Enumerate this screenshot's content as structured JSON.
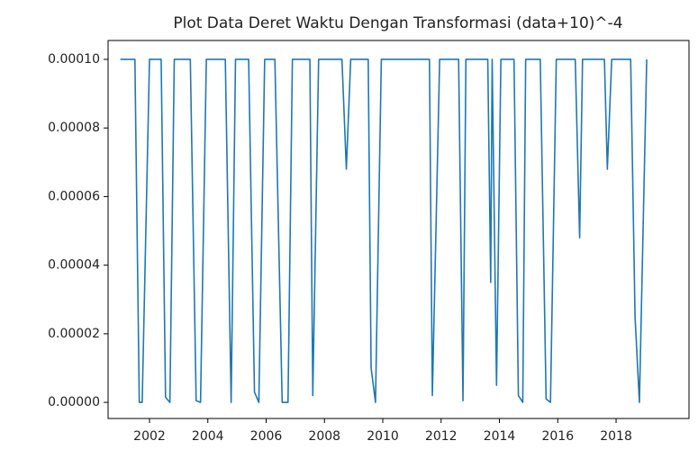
{
  "chart_data": {
    "type": "line",
    "title": "Plot Data Deret Waktu Dengan Transformasi (data+10)^-4",
    "xlim": [
      2000.58,
      2020.5
    ],
    "xticks": [
      2002,
      2004,
      2006,
      2008,
      2010,
      2012,
      2014,
      2016,
      2018
    ],
    "ylim": [
      -4.7e-06,
      0.0001055
    ],
    "yticks": [
      {
        "value": 0,
        "label": "0.00000"
      },
      {
        "value": 2e-05,
        "label": "0.00002"
      },
      {
        "value": 4e-05,
        "label": "0.00004"
      },
      {
        "value": 6e-05,
        "label": "0.00006"
      },
      {
        "value": 8e-05,
        "label": "0.00008"
      },
      {
        "value": 0.0001,
        "label": "0.00010"
      }
    ],
    "grid": false,
    "series": [
      {
        "color": "#1f77b4",
        "x": [
          2001.0,
          2001.5,
          2001.65,
          2001.75,
          2002.0,
          2002.4,
          2002.55,
          2002.7,
          2002.85,
          2003.4,
          2003.6,
          2003.75,
          2003.95,
          2004.6,
          2004.8,
          2004.95,
          2005.4,
          2005.6,
          2005.75,
          2005.95,
          2006.3,
          2006.55,
          2006.75,
          2006.9,
          2007.5,
          2007.6,
          2007.8,
          2008.6,
          2008.75,
          2008.9,
          2009.5,
          2009.6,
          2009.75,
          2009.95,
          2011.6,
          2011.7,
          2011.95,
          2012.6,
          2012.75,
          2012.85,
          2013.6,
          2013.7,
          2013.75,
          2013.9,
          2014.05,
          2014.5,
          2014.65,
          2014.8,
          2014.9,
          2015.4,
          2015.6,
          2015.75,
          2015.95,
          2016.6,
          2016.75,
          2016.85,
          2017.6,
          2017.7,
          2017.85,
          2018.5,
          2018.65,
          2018.8,
          2019.05
        ],
        "values": [
          0.0001,
          0.0001,
          0.0,
          0.0,
          0.0001,
          0.0001,
          1.5e-06,
          0.0,
          0.0001,
          0.0001,
          5e-07,
          0.0,
          0.0001,
          0.0001,
          0.0,
          0.0001,
          0.0001,
          3e-06,
          0.0,
          0.0001,
          0.0001,
          0.0,
          0.0,
          0.0001,
          0.0001,
          2e-06,
          0.0001,
          0.0001,
          6.8e-05,
          0.0001,
          0.0001,
          1e-05,
          0.0,
          0.0001,
          0.0001,
          2e-06,
          0.0001,
          0.0001,
          5e-07,
          0.0001,
          0.0001,
          3.5e-05,
          0.0001,
          5e-06,
          0.0001,
          0.0001,
          2e-06,
          0.0,
          0.0001,
          0.0001,
          1e-06,
          0.0,
          0.0001,
          0.0001,
          4.8e-05,
          0.0001,
          0.0001,
          6.8e-05,
          0.0001,
          0.0001,
          2.5e-05,
          0.0,
          0.0001
        ]
      }
    ]
  }
}
